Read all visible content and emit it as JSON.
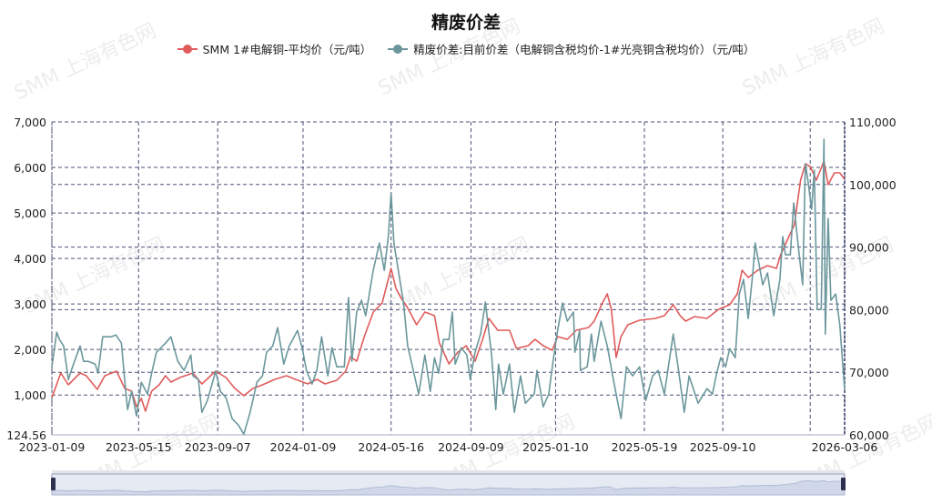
{
  "watermark": "SMM 上海有色网",
  "chart_data": {
    "type": "line",
    "title": "精废价差",
    "legend_position": "top",
    "grid": true,
    "x_start_date": "2023-01-09",
    "x_unit": "days since 2023-01-09",
    "x_ticks": [
      "2023-01-09",
      "2023-05-15",
      "2023-09-07",
      "2024-01-09",
      "2024-05-16",
      "2024-09-09",
      "2025-01-10",
      "2025-05-19",
      "2025-09-10",
      "2026-03-06"
    ],
    "y_left": {
      "min": 124.56,
      "max": 7000,
      "ticks": [
        124.56,
        1000,
        2000,
        3000,
        4000,
        5000,
        6000,
        7000
      ],
      "tick_labels": [
        "124.56",
        "1,000",
        "2,000",
        "3,000",
        "4,000",
        "5,000",
        "6,000",
        "7,000"
      ]
    },
    "y_right": {
      "min": 60000,
      "max": 110000,
      "ticks": [
        60000,
        70000,
        80000,
        90000,
        100000,
        110000
      ],
      "tick_labels": [
        "60,000",
        "70,000",
        "80,000",
        "90,000",
        "100,000",
        "110,000"
      ]
    },
    "series": [
      {
        "name": "SMM 1#电解铜-平均价（元/吨）",
        "axis": "right",
        "color": "#e05b5b",
        "points": [
          [
            0,
            65960
          ],
          [
            13,
            69880
          ],
          [
            24,
            67990
          ],
          [
            41,
            69880
          ],
          [
            50,
            69450
          ],
          [
            66,
            67270
          ],
          [
            77,
            69450
          ],
          [
            94,
            70170
          ],
          [
            106,
            67410
          ],
          [
            116,
            66980
          ],
          [
            123,
            64510
          ],
          [
            130,
            65810
          ],
          [
            136,
            63780
          ],
          [
            145,
            66980
          ],
          [
            156,
            67990
          ],
          [
            165,
            69450
          ],
          [
            173,
            68430
          ],
          [
            186,
            69160
          ],
          [
            205,
            69880
          ],
          [
            218,
            68140
          ],
          [
            238,
            70170
          ],
          [
            253,
            69160
          ],
          [
            266,
            67410
          ],
          [
            279,
            66250
          ],
          [
            292,
            67410
          ],
          [
            306,
            67990
          ],
          [
            324,
            68870
          ],
          [
            341,
            69450
          ],
          [
            354,
            68870
          ],
          [
            372,
            68140
          ],
          [
            385,
            68870
          ],
          [
            397,
            68140
          ],
          [
            414,
            68720
          ],
          [
            427,
            70170
          ],
          [
            434,
            72500
          ],
          [
            443,
            71770
          ],
          [
            454,
            75700
          ],
          [
            467,
            79620
          ],
          [
            480,
            81080
          ],
          [
            493,
            86600
          ],
          [
            500,
            83400
          ],
          [
            507,
            81950
          ],
          [
            516,
            80490
          ],
          [
            530,
            77590
          ],
          [
            542,
            79620
          ],
          [
            556,
            79040
          ],
          [
            563,
            74680
          ],
          [
            577,
            71340
          ],
          [
            590,
            73230
          ],
          [
            602,
            74240
          ],
          [
            615,
            71770
          ],
          [
            626,
            75260
          ],
          [
            635,
            78600
          ],
          [
            648,
            76720
          ],
          [
            665,
            76720
          ],
          [
            675,
            73810
          ],
          [
            692,
            74240
          ],
          [
            702,
            75260
          ],
          [
            714,
            74240
          ],
          [
            727,
            73520
          ],
          [
            735,
            75700
          ],
          [
            749,
            75260
          ],
          [
            762,
            76720
          ],
          [
            780,
            77150
          ],
          [
            788,
            78170
          ],
          [
            800,
            81080
          ],
          [
            807,
            82530
          ],
          [
            813,
            80060
          ],
          [
            820,
            72350
          ],
          [
            827,
            75700
          ],
          [
            837,
            77590
          ],
          [
            854,
            78310
          ],
          [
            877,
            78600
          ],
          [
            890,
            79040
          ],
          [
            903,
            80790
          ],
          [
            913,
            79040
          ],
          [
            921,
            78170
          ],
          [
            934,
            78900
          ],
          [
            952,
            78600
          ],
          [
            969,
            80060
          ],
          [
            985,
            80790
          ],
          [
            996,
            82530
          ],
          [
            1003,
            86310
          ],
          [
            1012,
            85150
          ],
          [
            1026,
            86310
          ],
          [
            1040,
            87030
          ],
          [
            1053,
            86600
          ],
          [
            1059,
            88780
          ],
          [
            1071,
            91690
          ],
          [
            1079,
            93580
          ],
          [
            1088,
            100700
          ],
          [
            1095,
            103310
          ],
          [
            1102,
            102880
          ],
          [
            1111,
            100700
          ],
          [
            1122,
            103750
          ],
          [
            1128,
            99970
          ],
          [
            1137,
            101860
          ],
          [
            1145,
            101860
          ],
          [
            1152,
            100840
          ]
        ]
      },
      {
        "name": "精废价差:目前价差（电解铜含税均价-1#光亮铜含税均价）（元/吨）",
        "axis": "left",
        "color": "#6b979c",
        "points": [
          [
            0,
            1620
          ],
          [
            7,
            2380
          ],
          [
            11,
            2220
          ],
          [
            17,
            2080
          ],
          [
            24,
            1340
          ],
          [
            30,
            1620
          ],
          [
            41,
            2080
          ],
          [
            46,
            1740
          ],
          [
            53,
            1740
          ],
          [
            63,
            1680
          ],
          [
            67,
            1480
          ],
          [
            74,
            2280
          ],
          [
            86,
            2280
          ],
          [
            93,
            2320
          ],
          [
            101,
            2140
          ],
          [
            107,
            1140
          ],
          [
            110,
            680
          ],
          [
            116,
            1080
          ],
          [
            123,
            540
          ],
          [
            130,
            1280
          ],
          [
            139,
            1020
          ],
          [
            145,
            1480
          ],
          [
            152,
            1940
          ],
          [
            165,
            2140
          ],
          [
            173,
            2280
          ],
          [
            183,
            1740
          ],
          [
            192,
            1540
          ],
          [
            202,
            1880
          ],
          [
            205,
            1420
          ],
          [
            213,
            1340
          ],
          [
            218,
            620
          ],
          [
            226,
            880
          ],
          [
            238,
            1520
          ],
          [
            245,
            1080
          ],
          [
            253,
            940
          ],
          [
            262,
            480
          ],
          [
            271,
            340
          ],
          [
            279,
            140
          ],
          [
            288,
            620
          ],
          [
            298,
            1280
          ],
          [
            306,
            1420
          ],
          [
            312,
            1940
          ],
          [
            321,
            2080
          ],
          [
            328,
            2480
          ],
          [
            337,
            1680
          ],
          [
            345,
            2080
          ],
          [
            357,
            2420
          ],
          [
            364,
            2020
          ],
          [
            370,
            1540
          ],
          [
            378,
            1240
          ],
          [
            385,
            1540
          ],
          [
            392,
            2280
          ],
          [
            401,
            1420
          ],
          [
            407,
            2040
          ],
          [
            414,
            1620
          ],
          [
            425,
            1620
          ],
          [
            431,
            3140
          ],
          [
            436,
            1740
          ],
          [
            443,
            2820
          ],
          [
            450,
            3080
          ],
          [
            456,
            2740
          ],
          [
            467,
            3740
          ],
          [
            476,
            4340
          ],
          [
            483,
            3740
          ],
          [
            489,
            4480
          ],
          [
            493,
            5440
          ],
          [
            497,
            4340
          ],
          [
            504,
            3680
          ],
          [
            511,
            3020
          ],
          [
            517,
            2080
          ],
          [
            524,
            1620
          ],
          [
            533,
            1020
          ],
          [
            542,
            1880
          ],
          [
            550,
            1080
          ],
          [
            556,
            1820
          ],
          [
            562,
            1480
          ],
          [
            569,
            2220
          ],
          [
            577,
            2220
          ],
          [
            582,
            2820
          ],
          [
            586,
            1680
          ],
          [
            595,
            2040
          ],
          [
            603,
            1880
          ],
          [
            608,
            1340
          ],
          [
            615,
            1940
          ],
          [
            623,
            2340
          ],
          [
            630,
            3040
          ],
          [
            639,
            1880
          ],
          [
            645,
            680
          ],
          [
            649,
            1680
          ],
          [
            656,
            1020
          ],
          [
            665,
            1680
          ],
          [
            672,
            620
          ],
          [
            681,
            1420
          ],
          [
            688,
            820
          ],
          [
            701,
            1020
          ],
          [
            705,
            1540
          ],
          [
            714,
            740
          ],
          [
            722,
            1020
          ],
          [
            729,
            1820
          ],
          [
            735,
            2420
          ],
          [
            742,
            3020
          ],
          [
            749,
            2620
          ],
          [
            758,
            2820
          ],
          [
            760,
            1940
          ],
          [
            767,
            2420
          ],
          [
            768,
            1540
          ],
          [
            778,
            1620
          ],
          [
            784,
            2340
          ],
          [
            788,
            1740
          ],
          [
            798,
            2620
          ],
          [
            807,
            2080
          ],
          [
            815,
            1420
          ],
          [
            821,
            940
          ],
          [
            827,
            480
          ],
          [
            835,
            1620
          ],
          [
            844,
            1420
          ],
          [
            854,
            1620
          ],
          [
            863,
            880
          ],
          [
            873,
            1420
          ],
          [
            881,
            1540
          ],
          [
            890,
            1020
          ],
          [
            903,
            2340
          ],
          [
            910,
            1620
          ],
          [
            919,
            620
          ],
          [
            926,
            1420
          ],
          [
            939,
            820
          ],
          [
            952,
            1140
          ],
          [
            960,
            1020
          ],
          [
            966,
            1480
          ],
          [
            972,
            1820
          ],
          [
            979,
            1620
          ],
          [
            985,
            2020
          ],
          [
            993,
            1820
          ],
          [
            999,
            3220
          ],
          [
            1005,
            3540
          ],
          [
            1012,
            2680
          ],
          [
            1019,
            3740
          ],
          [
            1022,
            4340
          ],
          [
            1026,
            4020
          ],
          [
            1033,
            3420
          ],
          [
            1040,
            3680
          ],
          [
            1049,
            2740
          ],
          [
            1058,
            3540
          ],
          [
            1062,
            4480
          ],
          [
            1066,
            4080
          ],
          [
            1073,
            4080
          ],
          [
            1078,
            5220
          ],
          [
            1085,
            4220
          ],
          [
            1091,
            3420
          ],
          [
            1095,
            6080
          ],
          [
            1099,
            5680
          ],
          [
            1104,
            5080
          ],
          [
            1108,
            5940
          ],
          [
            1112,
            2880
          ],
          [
            1118,
            2880
          ],
          [
            1122,
            6620
          ],
          [
            1124,
            2340
          ],
          [
            1128,
            4880
          ],
          [
            1132,
            3080
          ],
          [
            1139,
            3220
          ],
          [
            1145,
            2540
          ],
          [
            1152,
            1120
          ]
        ]
      }
    ]
  }
}
